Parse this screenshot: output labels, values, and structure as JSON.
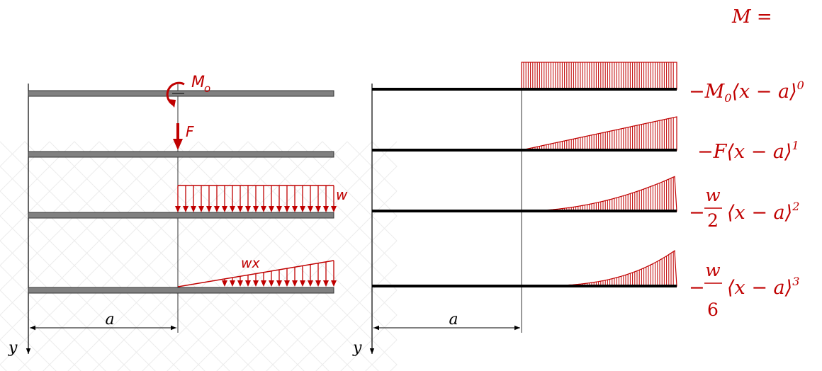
{
  "header": {
    "m_equals": "M ="
  },
  "left_panel": {
    "moment_label": "M",
    "moment_sub": "o",
    "force_label": "F",
    "uniform_load_label": "w",
    "linear_load_label": "wx",
    "dimension_label": "a",
    "axis_label": "y"
  },
  "right_panel": {
    "dimension_label": "a",
    "axis_label": "y",
    "terms": [
      {
        "sign": "−",
        "coef": "M",
        "coef_sub": "0",
        "bracket": "⟨x − a⟩",
        "power": "0"
      },
      {
        "sign": "−",
        "coef": "F",
        "bracket": "⟨x − a⟩",
        "power": "1"
      },
      {
        "sign": "−",
        "num": "w",
        "den": "2",
        "bracket": "⟨x − a⟩",
        "power": "2"
      },
      {
        "sign": "−",
        "num": "w",
        "den": "6",
        "bracket": "⟨x − a⟩",
        "power": "3"
      }
    ]
  },
  "colors": {
    "load": "#c00000",
    "beam_gray": "#808080",
    "beam_dark": "#000000",
    "watermark": "#eeeeee"
  }
}
